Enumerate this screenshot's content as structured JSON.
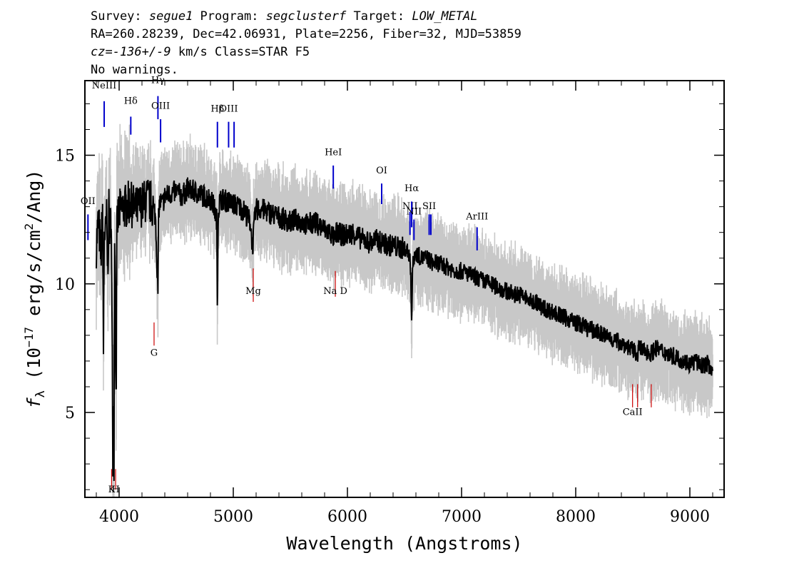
{
  "header": {
    "line1": [
      {
        "text": "Survey: ",
        "italic": false
      },
      {
        "text": "segue1",
        "italic": true
      },
      {
        "text": " Program: ",
        "italic": false
      },
      {
        "text": "segclusterf",
        "italic": true
      },
      {
        "text": " Target: ",
        "italic": false
      },
      {
        "text": "LOW_METAL",
        "italic": true
      }
    ],
    "line2": "RA=260.28239, Dec=42.06931, Plate=2256, Fiber=32, MJD=53859",
    "line3": [
      {
        "text": "cz=-136+/-9",
        "italic": true
      },
      {
        "text": " km/s Class=STAR F5",
        "italic": false
      }
    ],
    "line4": "No warnings."
  },
  "chart_data": {
    "type": "line",
    "xlabel": "Wavelength (Angstroms)",
    "ylabel_parts": {
      "f": "f",
      "sub": "λ",
      "open": " (10",
      "exp": "−17",
      "units": " erg/s/cm",
      "exp2": "2",
      "close": "/Ang)"
    },
    "xlim": [
      3700,
      9300
    ],
    "ylim": [
      1.7,
      17.9
    ],
    "x_ticks": [
      4000,
      5000,
      6000,
      7000,
      8000,
      9000
    ],
    "y_ticks": [
      5,
      10,
      15
    ],
    "colors": {
      "flux": "#000000",
      "error_band": "#c8c8c8",
      "emission": "#0000cc",
      "absorption": "#cc0000"
    },
    "flux_series": {
      "name": "flux",
      "x": [
        3800,
        3820,
        3840,
        3855,
        3862,
        3870,
        3880,
        3890,
        3900,
        3910,
        3920,
        3930,
        3940,
        3945,
        3950,
        3955,
        3960,
        3965,
        3970,
        3975,
        3980,
        3990,
        4000,
        4050,
        4100,
        4101,
        4102,
        4150,
        4200,
        4250,
        4300,
        4320,
        4330,
        4340,
        4345,
        4350,
        4360,
        4380,
        4400,
        4450,
        4500,
        4550,
        4600,
        4650,
        4700,
        4750,
        4800,
        4830,
        4855,
        4861,
        4866,
        4880,
        4900,
        4950,
        5000,
        5050,
        5100,
        5150,
        5167,
        5173,
        5183,
        5200,
        5250,
        5300,
        5350,
        5400,
        5450,
        5500,
        5550,
        5600,
        5650,
        5700,
        5750,
        5800,
        5850,
        5890,
        5896,
        5900,
        5950,
        6000,
        6050,
        6100,
        6150,
        6200,
        6250,
        6300,
        6350,
        6400,
        6450,
        6500,
        6540,
        6555,
        6563,
        6570,
        6590,
        6600,
        6650,
        6700,
        6750,
        6800,
        6850,
        6900,
        6950,
        7000,
        7050,
        7100,
        7150,
        7200,
        7250,
        7300,
        7350,
        7400,
        7450,
        7500,
        7550,
        7600,
        7650,
        7700,
        7750,
        7800,
        7850,
        7900,
        7950,
        8000,
        8050,
        8100,
        8150,
        8200,
        8250,
        8300,
        8350,
        8400,
        8450,
        8498,
        8542,
        8550,
        8600,
        8662,
        8700,
        8750,
        8800,
        8850,
        8900,
        8950,
        9000,
        9050,
        9100,
        9150,
        9200
      ],
      "y": [
        11.5,
        12.5,
        11.0,
        13.0,
        7.2,
        12.2,
        11.8,
        12.5,
        10.5,
        12.8,
        12.0,
        12.9,
        7.0,
        3.2,
        5.0,
        2.9,
        12.0,
        10.8,
        6.6,
        6.6,
        12.0,
        12.6,
        12.8,
        13.0,
        13.2,
        11.5,
        13.1,
        12.9,
        13.1,
        13.3,
        13.0,
        12.5,
        11.0,
        9.7,
        12.5,
        13.0,
        13.2,
        13.1,
        13.4,
        13.5,
        13.6,
        13.4,
        13.7,
        13.6,
        13.5,
        13.4,
        13.3,
        13.0,
        12.5,
        8.6,
        12.6,
        13.2,
        13.3,
        13.2,
        13.1,
        13.0,
        12.8,
        12.4,
        11.5,
        11.6,
        12.3,
        12.9,
        12.9,
        12.8,
        12.7,
        12.6,
        12.5,
        12.4,
        12.5,
        12.4,
        12.3,
        12.4,
        12.3,
        12.1,
        12.0,
        11.7,
        11.7,
        12.0,
        11.9,
        11.9,
        12.0,
        11.8,
        11.7,
        11.6,
        11.7,
        11.6,
        11.5,
        11.5,
        11.4,
        11.4,
        11.2,
        10.5,
        8.4,
        10.6,
        11.2,
        11.2,
        11.0,
        11.0,
        10.8,
        10.8,
        10.7,
        10.6,
        10.5,
        10.5,
        10.4,
        10.3,
        10.2,
        10.1,
        10.0,
        9.9,
        9.8,
        9.7,
        9.6,
        9.6,
        9.5,
        9.3,
        9.3,
        9.1,
        9.0,
        8.9,
        8.8,
        8.7,
        8.6,
        8.5,
        8.4,
        8.3,
        8.2,
        8.1,
        8.0,
        7.9,
        7.8,
        7.7,
        7.6,
        7.4,
        7.3,
        7.5,
        7.4,
        7.3,
        7.5,
        7.4,
        7.3,
        7.2,
        7.1,
        7.0,
        6.9,
        7.0,
        6.8,
        6.9,
        6.7
      ]
    },
    "error_band_halfwidth": 1.0,
    "emission_lines": [
      {
        "label": "OII",
        "x": 3727,
        "y_top": 12.7,
        "y_bot": 11.7,
        "label_y": 13.1
      },
      {
        "label": "NeIII",
        "x": 3869,
        "y_top": 17.1,
        "y_bot": 16.1,
        "label_y": 17.6
      },
      {
        "label": "Hδ",
        "x": 4102,
        "y_top": 16.5,
        "y_bot": 15.8,
        "label_y": 17.0
      },
      {
        "label": "Hγ",
        "x": 4340,
        "y_top": 17.3,
        "y_bot": 16.4,
        "label_y": 17.8
      },
      {
        "label": "OIII",
        "x": 4363,
        "y_top": 16.4,
        "y_bot": 15.5,
        "label_y": 16.8
      },
      {
        "label": "Hβ",
        "x": 4861,
        "y_top": 16.3,
        "y_bot": 15.3,
        "label_y": 16.7
      },
      {
        "label": "OIII",
        "x": 4959,
        "y_top": 16.3,
        "y_bot": 15.3,
        "label_y": 16.7
      },
      {
        "label": "OIII",
        "x": 5007,
        "y_top": 16.3,
        "y_bot": 15.3,
        "label_y": null
      },
      {
        "label": "HeI",
        "x": 5876,
        "y_top": 14.6,
        "y_bot": 13.7,
        "label_y": 15.0
      },
      {
        "label": "OI",
        "x": 6300,
        "y_top": 13.9,
        "y_bot": 13.1,
        "label_y": 14.3
      },
      {
        "label": "NII",
        "x": 6548,
        "y_top": 12.8,
        "y_bot": 11.9,
        "label_y": 12.9
      },
      {
        "label": "Hα",
        "x": 6563,
        "y_top": 13.2,
        "y_bot": 12.2,
        "label_y": 13.6
      },
      {
        "label": "NII",
        "x": 6583,
        "y_top": 12.5,
        "y_bot": 11.7,
        "label_y": 12.7
      },
      {
        "label": "SII",
        "x": 6716,
        "y_top": 12.7,
        "y_bot": 11.9,
        "label_y": 12.9
      },
      {
        "label": "SII",
        "x": 6731,
        "y_top": 12.7,
        "y_bot": 11.9,
        "label_y": null
      },
      {
        "label": "ArIII",
        "x": 7136,
        "y_top": 12.2,
        "y_bot": 11.3,
        "label_y": 12.5
      }
    ],
    "absorption_lines": [
      {
        "label": "K",
        "x": 3934,
        "y_top": 2.8,
        "y_bot": 2.0,
        "label_y": 1.9
      },
      {
        "label": "H",
        "x": 3969,
        "y_top": 2.8,
        "y_bot": 2.0,
        "label_y": 1.9
      },
      {
        "label": "G",
        "x": 4306,
        "y_top": 8.5,
        "y_bot": 7.6,
        "label_y": 7.2
      },
      {
        "label": "Mg",
        "x": 5175,
        "y_top": 9.3,
        "y_bot": 10.6,
        "label_y": 9.6
      },
      {
        "label": "Na D",
        "x": 5894,
        "y_top": 9.5,
        "y_bot": 10.5,
        "label_y": 9.6
      },
      {
        "label": "CaII",
        "x": 8498,
        "y_top": 5.2,
        "y_bot": 6.1,
        "label_y": 4.9
      },
      {
        "label": "CaII",
        "x": 8542,
        "y_top": 5.2,
        "y_bot": 6.1,
        "label_y": null
      },
      {
        "label": "CaII",
        "x": 8662,
        "y_top": 5.2,
        "y_bot": 6.1,
        "label_y": null
      }
    ]
  }
}
